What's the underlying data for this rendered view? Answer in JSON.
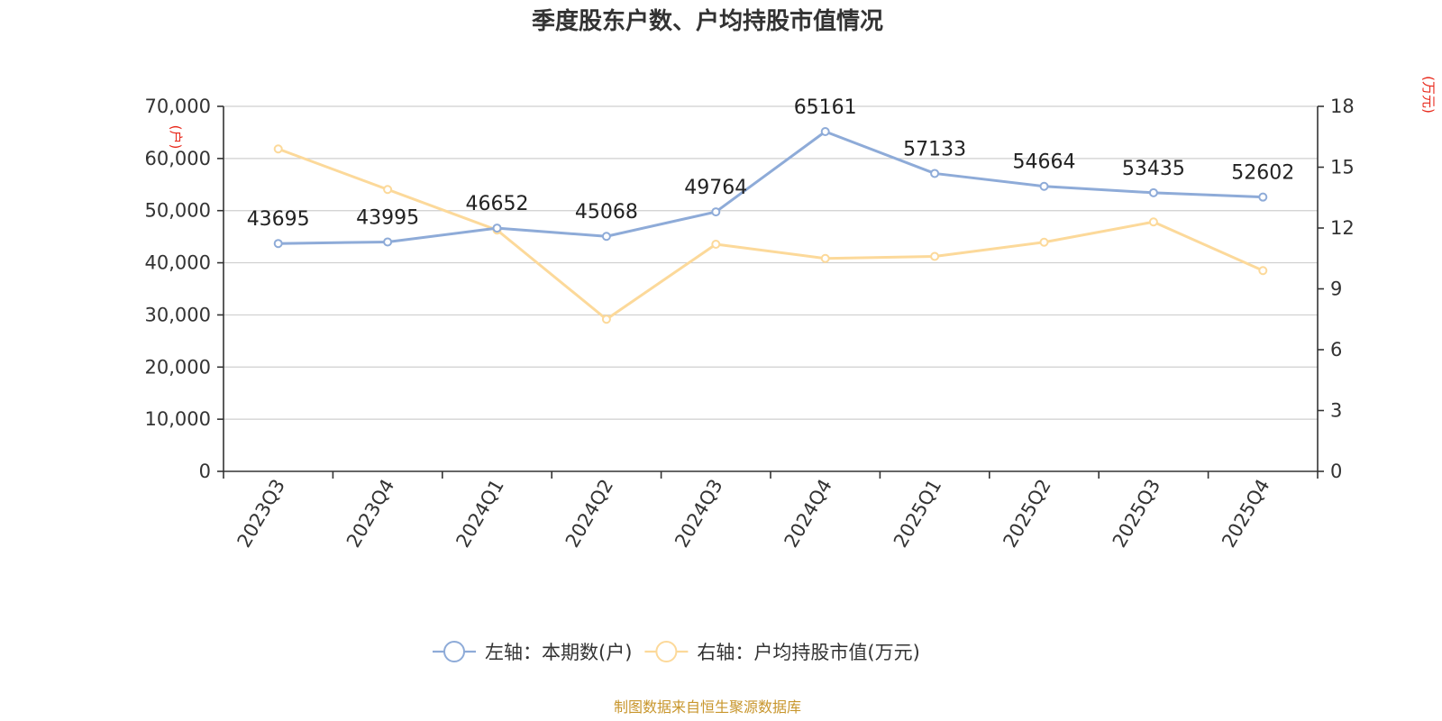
{
  "chart_data": {
    "type": "line",
    "title": "季度股东户数、户均持股市值情况",
    "categories": [
      "2023Q3",
      "2023Q4",
      "2024Q1",
      "2024Q2",
      "2024Q3",
      "2024Q4",
      "2025Q1",
      "2025Q2",
      "2025Q3",
      "2025Q4"
    ],
    "y_left": {
      "unit": "(户)",
      "range": [
        0,
        70000
      ],
      "ticks": [
        "0",
        "10,000",
        "20,000",
        "30,000",
        "40,000",
        "50,000",
        "60,000",
        "70,000"
      ]
    },
    "y_right": {
      "unit": "(万元)",
      "range": [
        0,
        18
      ],
      "ticks": [
        "0",
        "3",
        "6",
        "9",
        "12",
        "15",
        "18"
      ]
    },
    "series": [
      {
        "name": "左轴：本期数(户)",
        "axis": "left",
        "color": "#8eabd8",
        "values": [
          43695,
          43995,
          46652,
          45068,
          49764,
          65161,
          57133,
          54664,
          53435,
          52602
        ],
        "labels": [
          "43695",
          "43995",
          "46652",
          "45068",
          "49764",
          "65161",
          "57133",
          "54664",
          "53435",
          "52602"
        ]
      },
      {
        "name": "右轴：户均持股市值(万元)",
        "axis": "right",
        "color": "#fcd99a",
        "values": [
          15.9,
          13.9,
          11.9,
          7.5,
          11.2,
          10.5,
          10.6,
          11.3,
          12.3,
          9.9
        ]
      }
    ],
    "grid": true,
    "legend": "bottom-center",
    "source": "制图数据来自恒生聚源数据库"
  }
}
